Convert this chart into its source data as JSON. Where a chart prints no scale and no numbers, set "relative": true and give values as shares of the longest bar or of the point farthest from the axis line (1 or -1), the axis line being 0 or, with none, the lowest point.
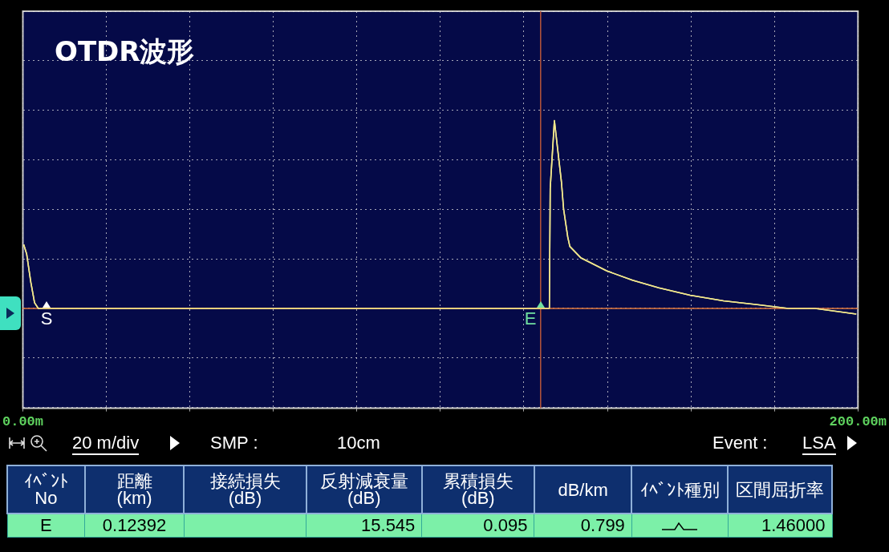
{
  "chart_data": {
    "type": "line",
    "title": "OTDR波形",
    "relative": true,
    "x": [
      0.2,
      0.9,
      1.9,
      2.8,
      3.7,
      7.1,
      30,
      60,
      90,
      110,
      124,
      126.1,
      126.3,
      127.3,
      129.0,
      129.5,
      130.5,
      131.0,
      133.6,
      139.8,
      146.0,
      152.3,
      159.8,
      167.8,
      175.9,
      183.3,
      189.7,
      199.6
    ],
    "series": [
      {
        "color": "#f0e68c",
        "values": [
          0.34,
          0.29,
          0.14,
          0.03,
          0,
          0,
          0,
          0,
          0,
          0,
          0,
          0,
          0.64,
          1,
          0.67,
          0.53,
          0.38,
          0.33,
          0.27,
          0.2,
          0.15,
          0.11,
          0.07,
          0.04,
          0.02,
          0,
          0,
          -0.03
        ]
      }
    ],
    "xlim": [
      0,
      200
    ],
    "xticks": [
      {
        "value": 0,
        "label": "0.00m"
      },
      {
        "value": 20,
        "label": null
      },
      {
        "value": 40,
        "label": null
      },
      {
        "value": 60,
        "label": null
      },
      {
        "value": 80,
        "label": null
      },
      {
        "value": 100,
        "label": null
      },
      {
        "value": 120,
        "label": null
      },
      {
        "value": 140,
        "label": null
      },
      {
        "value": 160,
        "label": null
      },
      {
        "value": 180,
        "label": null
      },
      {
        "value": 200,
        "label": "200.00m"
      }
    ],
    "grid": true,
    "marker": "none",
    "line_style": "solid",
    "legend": false,
    "ref_lines": [
      {
        "axis": "x",
        "value": 124,
        "color": "#b8553a"
      },
      {
        "axis": "y",
        "value": 0,
        "color": "#e0783c"
      }
    ],
    "annotations": [
      {
        "text": "S",
        "x": 5.6,
        "y": 0
      },
      {
        "text": "E",
        "x": 124,
        "y": 0
      },
      "20 m/div",
      "SMP :",
      "10cm",
      "Event :",
      "LSA",
      "ｲﾍﾞﾝﾄ\nNo",
      "距離\n(km)",
      "接続損失\n(dB)",
      "反射減衰量 (dB)",
      "累積損失\n(dB)",
      "dB/km",
      "ｲﾍﾞﾝﾄ種別",
      "区間屈折率",
      "E",
      "0.12392",
      "15.545",
      "0.095",
      "0.799",
      "1.46000"
    ]
  }
}
